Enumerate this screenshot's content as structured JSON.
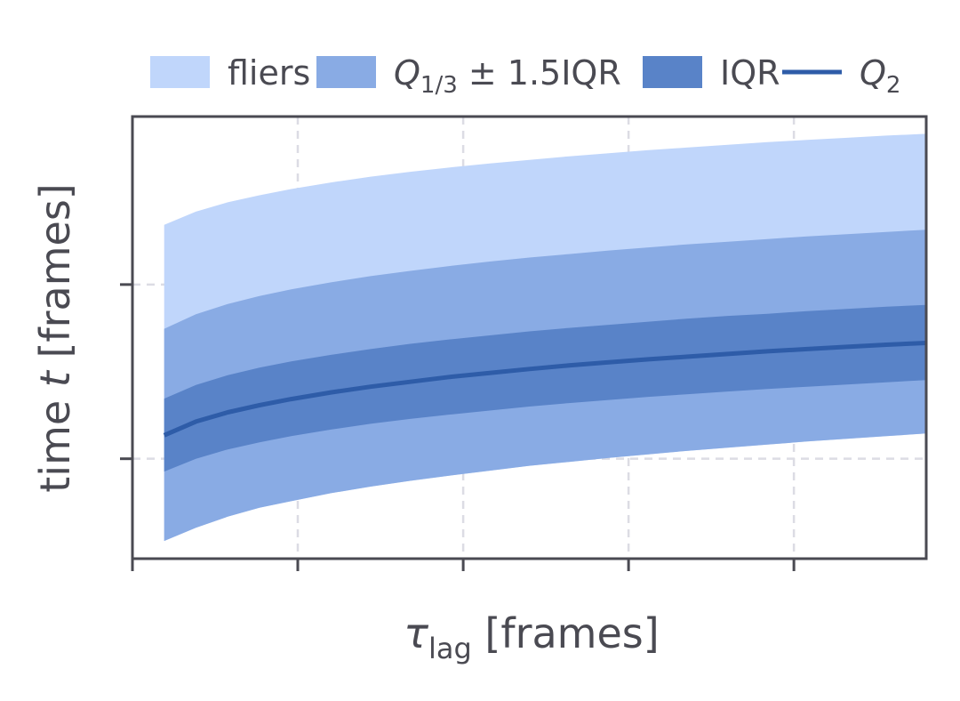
{
  "chart_data": {
    "type": "area",
    "xlabel_main": "τ",
    "xlabel_sub": "lag",
    "xlabel_rest": " [frames]",
    "ylabel_pre": "time ",
    "ylabel_var": "t",
    "ylabel_post": " [frames]",
    "legend_placement": "top",
    "legend": {
      "fliers": "fliers",
      "whisker_main": "Q",
      "whisker_sub": "1/3",
      "whisker_rest": " ± 1.5IQR",
      "iqr": "IQR",
      "median_main": "Q",
      "median_sub": "2"
    },
    "grid": true,
    "xlim": [
      0,
      1
    ],
    "ylim": [
      0,
      1
    ],
    "x": [
      0.04,
      0.08,
      0.12,
      0.16,
      0.2,
      0.25,
      0.3,
      0.35,
      0.4,
      0.45,
      0.5,
      0.55,
      0.6,
      0.65,
      0.7,
      0.75,
      0.8,
      0.85,
      0.9,
      0.95,
      1.0
    ],
    "bands": [
      {
        "key": "fliers",
        "color": "#c0d6fb",
        "lower": [
          0.04,
          0.07,
          0.095,
          0.115,
          0.13,
          0.148,
          0.163,
          0.176,
          0.188,
          0.199,
          0.21,
          0.219,
          0.228,
          0.236,
          0.244,
          0.251,
          0.258,
          0.265,
          0.271,
          0.277,
          0.283
        ],
        "upper": [
          0.755,
          0.785,
          0.806,
          0.822,
          0.836,
          0.851,
          0.864,
          0.875,
          0.885,
          0.894,
          0.902,
          0.91,
          0.917,
          0.924,
          0.93,
          0.936,
          0.942,
          0.947,
          0.952,
          0.957,
          0.961
        ]
      },
      {
        "key": "whisker",
        "color": "#89abe4",
        "lower": [
          0.04,
          0.07,
          0.095,
          0.115,
          0.13,
          0.148,
          0.163,
          0.176,
          0.188,
          0.199,
          0.21,
          0.219,
          0.228,
          0.236,
          0.244,
          0.251,
          0.258,
          0.265,
          0.271,
          0.277,
          0.283
        ],
        "upper": [
          0.52,
          0.553,
          0.576,
          0.594,
          0.609,
          0.625,
          0.639,
          0.651,
          0.662,
          0.672,
          0.681,
          0.689,
          0.697,
          0.704,
          0.711,
          0.717,
          0.723,
          0.729,
          0.734,
          0.739,
          0.744
        ]
      },
      {
        "key": "iqr",
        "color": "#5983c8",
        "lower": [
          0.197,
          0.226,
          0.247,
          0.263,
          0.277,
          0.292,
          0.305,
          0.316,
          0.326,
          0.335,
          0.344,
          0.352,
          0.359,
          0.366,
          0.372,
          0.378,
          0.384,
          0.389,
          0.394,
          0.399,
          0.404
        ],
        "upper": [
          0.362,
          0.393,
          0.415,
          0.432,
          0.446,
          0.461,
          0.474,
          0.486,
          0.496,
          0.505,
          0.514,
          0.522,
          0.529,
          0.536,
          0.543,
          0.549,
          0.554,
          0.56,
          0.565,
          0.57,
          0.574
        ]
      }
    ],
    "median": {
      "key": "median",
      "color": "#2e5ca8",
      "values": [
        0.279,
        0.31,
        0.331,
        0.347,
        0.361,
        0.376,
        0.389,
        0.4,
        0.411,
        0.42,
        0.429,
        0.437,
        0.444,
        0.451,
        0.457,
        0.463,
        0.469,
        0.474,
        0.479,
        0.484,
        0.488
      ]
    },
    "x_ticks": [
      0,
      0.2083,
      0.4167,
      0.625,
      0.8333
    ],
    "y_ticks": [
      0.226,
      0.62
    ]
  }
}
